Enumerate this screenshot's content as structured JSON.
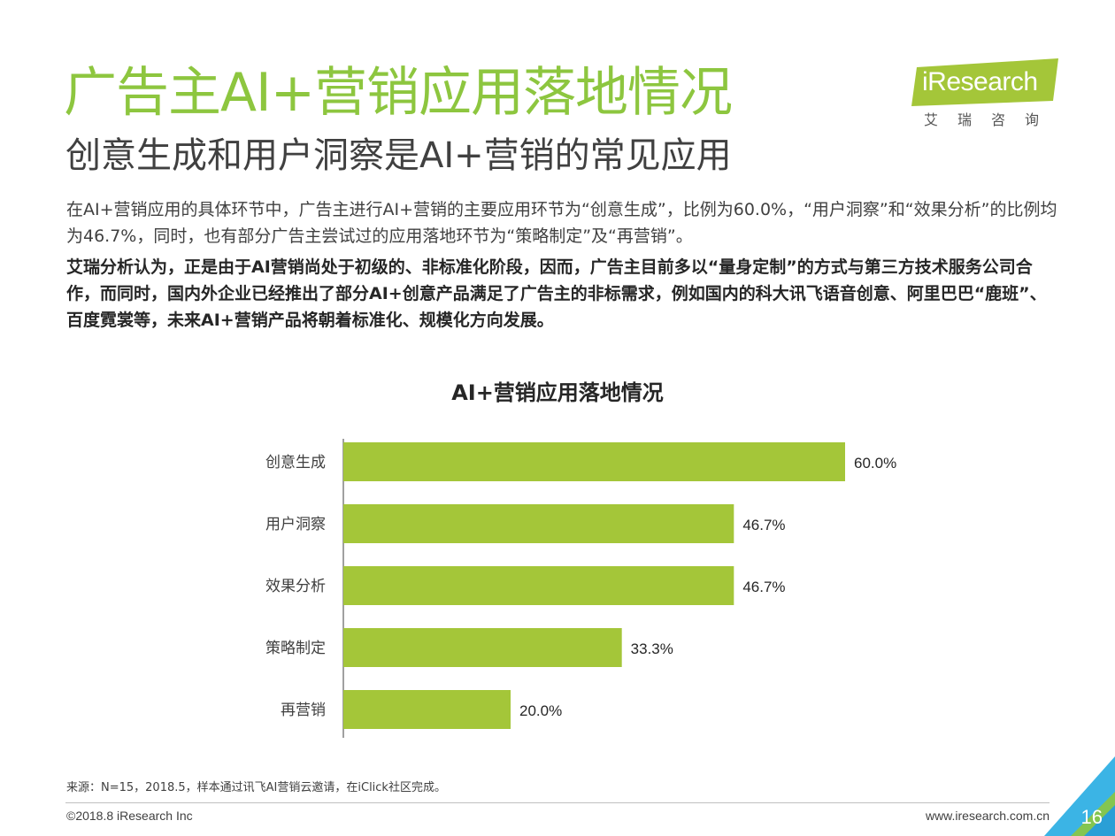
{
  "header": {
    "title": "广告主AI+营销应用落地情况",
    "subtitle": "创意生成和用户洞察是AI+营销的常见应用"
  },
  "logo": {
    "brand": "iResearch",
    "cn": "艾瑞咨询"
  },
  "body": {
    "para1": "在AI+营销应用的具体环节中，广告主进行AI+营销的主要应用环节为“创意生成”，比例为60.0%，“用户洞察”和“效果分析”的比例均为46.7%，同时，也有部分广告主尝试过的应用落地环节为“策略制定”及“再营销”。",
    "para2": "艾瑞分析认为，正是由于AI营销尚处于初级的、非标准化阶段，因而，广告主目前多以“量身定制”的方式与第三方技术服务公司合作，而同时，国内外企业已经推出了部分AI+创意产品满足了广告主的非标需求，例如国内的科大讯飞语音创意、阿里巴巴“鹿班”、百度霓裳等，未来AI+营销产品将朝着标准化、规模化方向发展。"
  },
  "chart_data": {
    "type": "bar",
    "orientation": "horizontal",
    "title": "AI+营销应用落地情况",
    "categories": [
      "创意生成",
      "用户洞察",
      "效果分析",
      "策略制定",
      "再营销"
    ],
    "values": [
      60.0,
      46.7,
      46.7,
      33.3,
      20.0
    ],
    "value_labels": [
      "60.0%",
      "46.7%",
      "46.7%",
      "33.3%",
      "20.0%"
    ],
    "xlim": [
      0,
      60
    ],
    "grid": false,
    "legend": "none",
    "bar_color": "#a4c639"
  },
  "footer": {
    "source": "来源：N=15，2018.5，样本通过讯飞AI营销云邀请，在iClick社区完成。",
    "copyright": "©2018.8 iResearch Inc",
    "website": "www.iresearch.com.cn",
    "page": "16"
  },
  "colors": {
    "title_green": "#8dc63f",
    "logo_green": "#a4c639",
    "corner_blue": "#3bb4e5"
  }
}
